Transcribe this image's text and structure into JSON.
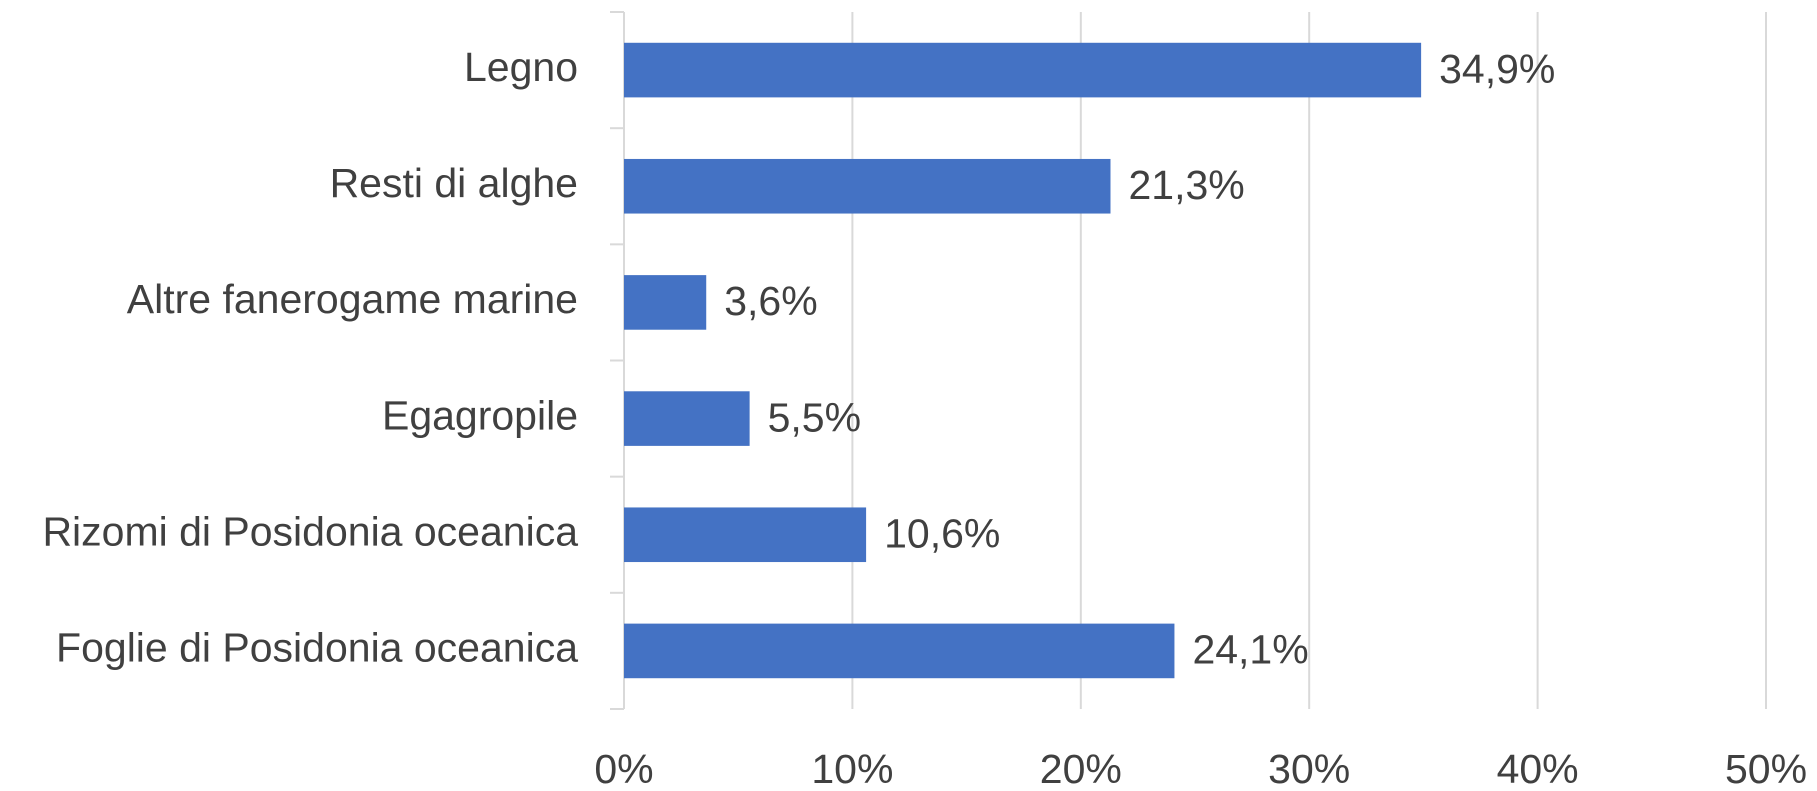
{
  "chart_data": {
    "type": "bar",
    "orientation": "horizontal",
    "categories": [
      "Legno",
      "Resti di alghe",
      "Altre fanerogame marine",
      "Egagropile",
      "Rizomi di Posidonia oceanica",
      "Foglie di Posidonia oceanica"
    ],
    "values": [
      34.9,
      21.3,
      3.6,
      5.5,
      10.6,
      24.1
    ],
    "value_labels": [
      "34,9%",
      "21,3%",
      "3,6%",
      "5,5%",
      "10,6%",
      "24,1%"
    ],
    "color": "#4472c4",
    "xlim": [
      0,
      50
    ],
    "xticks": [
      {
        "value": 0,
        "label": "0%"
      },
      {
        "value": 10,
        "label": "10%"
      },
      {
        "value": 20,
        "label": "20%"
      },
      {
        "value": 30,
        "label": "30%"
      },
      {
        "value": 40,
        "label": "40%"
      },
      {
        "value": 50,
        "label": "50%"
      }
    ],
    "grid": true
  }
}
